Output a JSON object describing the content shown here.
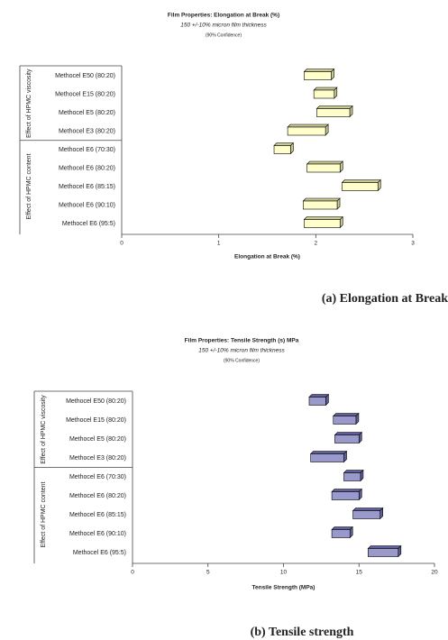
{
  "chart_data": [
    {
      "type": "range_bar",
      "title": "Film Properties: Elongation at Break (%)",
      "subtitle": "150 +/-10% micron film thickness",
      "note": "(90% Confidence)",
      "x_label": "Elongation at Break (%)",
      "caption": "(a) Elongation at Break",
      "color": "#ffffcc",
      "shadow_color": "#c8c890",
      "xlim": [
        0,
        3
      ],
      "xticks": [
        0,
        1,
        2,
        3
      ],
      "groups": [
        {
          "label": "Effect of HPMC viscosity",
          "categories": [
            "Methocel E50 (80:20)",
            "Methocel E15 (80:20)",
            "Methocel E5 (80:20)",
            "Methocel E3 (80:20)"
          ],
          "low": [
            1.88,
            1.98,
            2.01,
            1.71
          ],
          "high": [
            2.16,
            2.19,
            2.35,
            2.1
          ]
        },
        {
          "label": "Effect of HPMC content",
          "categories": [
            "Methocel E6 (70:30)",
            "Methocel E6 (80:20)",
            "Methocel E6 (85:15)",
            "Methocel E6 (90:10)",
            "Methocel E6 (95:5)"
          ],
          "low": [
            1.57,
            1.91,
            2.27,
            1.87,
            1.88
          ],
          "high": [
            1.74,
            2.25,
            2.64,
            2.22,
            2.25
          ]
        }
      ]
    },
    {
      "type": "range_bar",
      "title": "Film Properties: Tensile Strength (s) MPa",
      "subtitle": "150 +/-10% micron film thickness",
      "note": "(90% Confidence)",
      "x_label": "Tensile Strength (MPa)",
      "caption": "(b) Tensile strength",
      "color": "#9999cc",
      "shadow_color": "#5f5f99",
      "xlim": [
        0,
        20
      ],
      "xticks": [
        0,
        5,
        10,
        15,
        20
      ],
      "groups": [
        {
          "label": "Effect of HPMC viscosity",
          "categories": [
            "Methocel E50 (80:20)",
            "Methocel E15 (80:20)",
            "Methocel E5 (80:20)",
            "Methocel E3 (80:20)"
          ],
          "low": [
            11.7,
            13.3,
            13.4,
            11.8
          ],
          "high": [
            12.8,
            14.8,
            15.0,
            14.0
          ]
        },
        {
          "label": "Effect of HPMC content",
          "categories": [
            "Methocel E6 (70:30)",
            "Methocel E6 (80:20)",
            "Methocel E6 (85:15)",
            "Methocel E6 (90:10)",
            "Methocel E6 (95:5)"
          ],
          "low": [
            14.0,
            13.2,
            14.6,
            13.2,
            15.6
          ],
          "high": [
            15.1,
            15.0,
            16.4,
            14.4,
            17.6
          ]
        }
      ]
    }
  ]
}
